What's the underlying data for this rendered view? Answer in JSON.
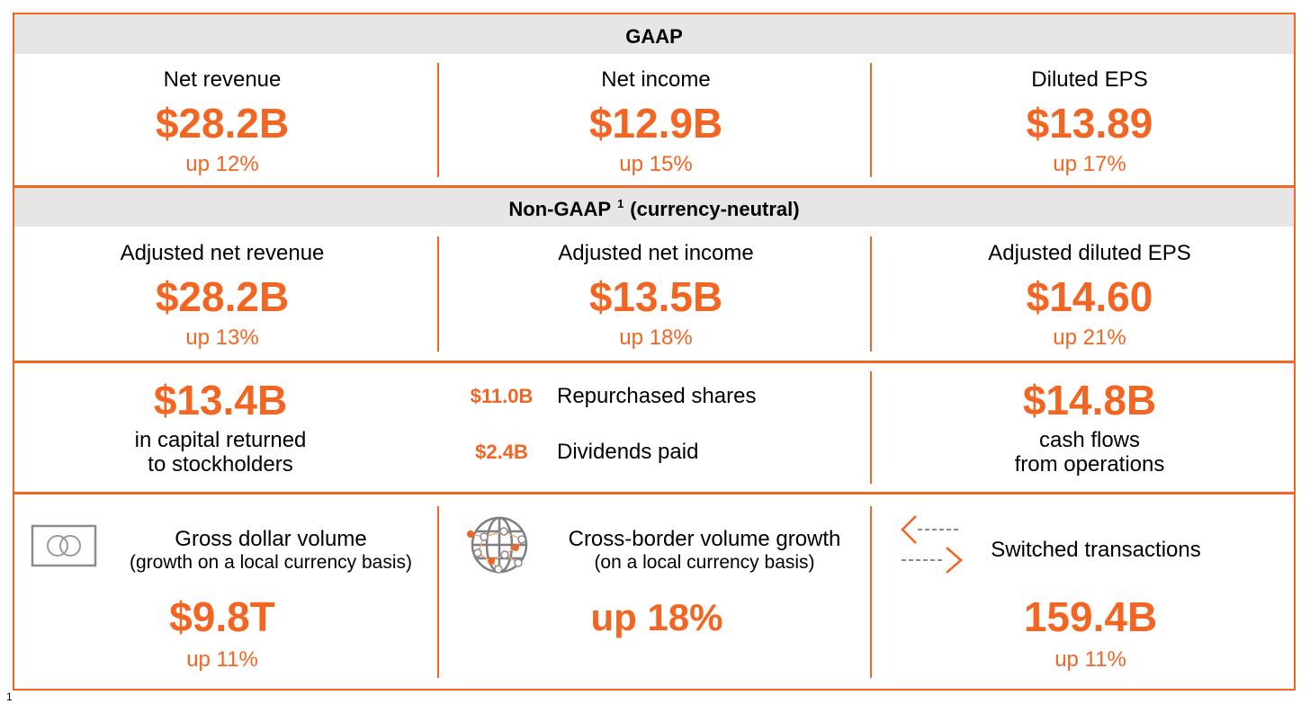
{
  "colors": {
    "accent": "#F26522",
    "header_band": "#E7E6E6",
    "text": "#000000",
    "icon_gray": "#8C8C8C"
  },
  "gaap": {
    "header": "GAAP",
    "metrics": [
      {
        "label": "Net revenue",
        "value": "$28.2B",
        "change": "up 12%"
      },
      {
        "label": "Net income",
        "value": "$12.9B",
        "change": "up 15%"
      },
      {
        "label": "Diluted EPS",
        "value": "$13.89",
        "change": "up 17%"
      }
    ]
  },
  "non_gaap": {
    "header": "Non-GAAP",
    "footnote_marker": "1",
    "header_qualifier": "(currency-neutral)",
    "metrics": [
      {
        "label": "Adjusted net revenue",
        "value": "$28.2B",
        "change": "up 13%"
      },
      {
        "label": "Adjusted net income",
        "value": "$13.5B",
        "change": "up 18%"
      },
      {
        "label": "Adjusted diluted EPS",
        "value": "$14.60",
        "change": "up 21%"
      }
    ]
  },
  "capital_returned": {
    "value": "$13.4B",
    "label_line1": "in capital returned",
    "label_line2": "to stockholders",
    "breakdown": [
      {
        "value": "$11.0B",
        "label": "Repurchased shares"
      },
      {
        "value": "$2.4B",
        "label": "Dividends paid"
      }
    ]
  },
  "cash_flows": {
    "value": "$14.8B",
    "label_line1": "cash flows",
    "label_line2": "from operations"
  },
  "volume_metrics": [
    {
      "icon": "card-icon",
      "title": "Gross dollar volume",
      "subtitle": "(growth on a local currency basis)",
      "value": "$9.8T",
      "change": "up 11%"
    },
    {
      "icon": "globe-icon",
      "title": "Cross-border volume growth",
      "subtitle": "(on a local currency basis)",
      "value": "up 18%"
    },
    {
      "icon": "switch-arrows-icon",
      "title": "Switched transactions",
      "value": "159.4B",
      "change": "up 11%"
    }
  ],
  "footnote_marker": "1"
}
